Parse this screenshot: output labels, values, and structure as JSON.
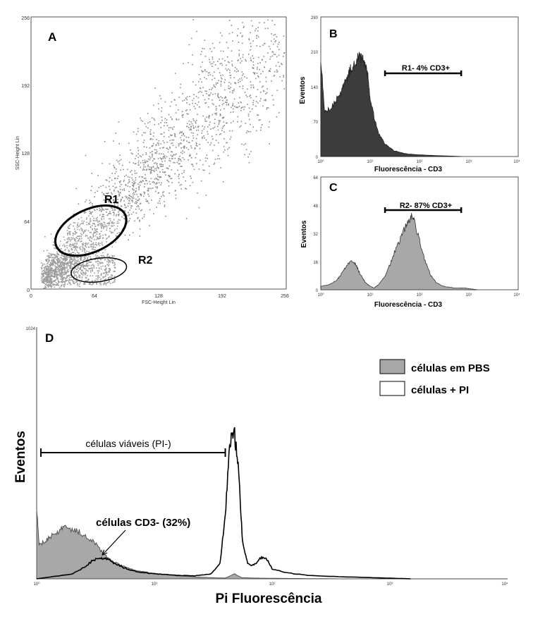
{
  "chart_data": [
    {
      "panel": "A",
      "type": "scatter",
      "xlabel": "FSC-Height Lin",
      "ylabel": "SSC-Height Lin",
      "xlim": [
        0,
        256
      ],
      "ylim": [
        0,
        256
      ],
      "x_ticks": [
        "0",
        "64",
        "128",
        "192",
        "256"
      ],
      "y_ticks": [
        "0",
        "64",
        "128",
        "192",
        "256"
      ],
      "grid": false,
      "point_color": "#8a8a8a",
      "gates": [
        {
          "label": "R1",
          "cx": 60,
          "cy": 55,
          "rx": 38,
          "ry": 20,
          "angle_deg": 25,
          "stroke": 3
        },
        {
          "label": "R2",
          "cx": 68,
          "cy": 18,
          "rx": 28,
          "ry": 11,
          "angle_deg": 8,
          "stroke": 1.5
        }
      ]
    },
    {
      "panel": "B",
      "type": "area",
      "xlabel": "Fluorescência - CD3",
      "ylabel": "Eventos",
      "xscale": "log",
      "xlim": [
        1,
        10000
      ],
      "ylim": [
        0,
        280
      ],
      "x_ticks": [
        "10⁰",
        "10¹",
        "10²",
        "10³",
        "10⁴"
      ],
      "y_ticks": [
        "0",
        "70",
        "140",
        "210",
        "280"
      ],
      "fill": "#3c3c3c",
      "x": [
        1,
        1.2,
        1.5,
        2,
        2.5,
        3,
        3.5,
        4,
        5,
        6,
        7,
        8,
        9,
        10,
        12,
        15,
        20,
        30,
        50,
        80,
        120,
        200,
        400,
        700
      ],
      "y": [
        200,
        90,
        95,
        110,
        128,
        145,
        160,
        175,
        190,
        200,
        197,
        185,
        160,
        120,
        80,
        45,
        25,
        12,
        6,
        4,
        3,
        2,
        1,
        0
      ],
      "marker": {
        "text": "R1- 4% CD3+",
        "x_range": [
          20,
          700
        ]
      }
    },
    {
      "panel": "C",
      "type": "area",
      "xlabel": "Fluorescência - CD3",
      "ylabel": "Eventos",
      "xscale": "log",
      "xlim": [
        1,
        10000
      ],
      "ylim": [
        0,
        64
      ],
      "x_ticks": [
        "10⁰",
        "10¹",
        "10²",
        "10³",
        "10⁴"
      ],
      "y_ticks": [
        "0",
        "16",
        "32",
        "48",
        "64"
      ],
      "fill": "#a8a8a8",
      "x": [
        1,
        1.5,
        2,
        2.5,
        3,
        4,
        5,
        6,
        7,
        8,
        10,
        12,
        15,
        20,
        25,
        30,
        40,
        50,
        60,
        70,
        80,
        100,
        130,
        170,
        220,
        300,
        500,
        800,
        1500
      ],
      "y": [
        2,
        3,
        5,
        8,
        12,
        16,
        15,
        10,
        7,
        4,
        2,
        1,
        3,
        8,
        14,
        20,
        28,
        35,
        39,
        42,
        38,
        28,
        16,
        8,
        4,
        2,
        1,
        1,
        0
      ],
      "marker": {
        "text": "R2- 87% CD3+",
        "x_range": [
          20,
          700
        ]
      }
    },
    {
      "panel": "D",
      "type": "area",
      "xlabel": "Pi Fluorescência",
      "ylabel": "Eventos",
      "xscale": "log",
      "xlim": [
        1,
        10000
      ],
      "ylim": [
        0,
        1024
      ],
      "x_ticks": [
        "10⁰",
        "10¹",
        "10²",
        "10³",
        "10⁴"
      ],
      "y_ticks": [
        "1024"
      ],
      "series": [
        {
          "name": "células em PBS",
          "fill": "#a8a8a8",
          "x": [
            1,
            1.05,
            1.15,
            1.3,
            1.5,
            1.7,
            2,
            2.3,
            2.7,
            3.2,
            3.8,
            4.5,
            5.5,
            7,
            9,
            12,
            16,
            22,
            30,
            40,
            48,
            55,
            70,
            100,
            200,
            400,
            800
          ],
          "y": [
            300,
            140,
            150,
            170,
            190,
            210,
            200,
            190,
            170,
            140,
            95,
            70,
            50,
            35,
            25,
            18,
            12,
            8,
            5,
            3,
            20,
            5,
            3,
            2,
            1,
            0,
            0
          ]
        },
        {
          "name": "células + PI",
          "fill": "#ffffff",
          "x": [
            1,
            2,
            2.5,
            3,
            3.5,
            4,
            4.5,
            5.5,
            7,
            9,
            12,
            16,
            22,
            30,
            36,
            40,
            44,
            48,
            52,
            56,
            62,
            70,
            80,
            90,
            100,
            130,
            200,
            400,
            800,
            1500
          ],
          "y": [
            0,
            20,
            45,
            75,
            85,
            80,
            65,
            45,
            30,
            22,
            18,
            14,
            12,
            20,
            60,
            260,
            560,
            590,
            440,
            150,
            60,
            55,
            85,
            80,
            40,
            25,
            14,
            8,
            4,
            0
          ]
        }
      ],
      "bracket": {
        "text": "células viáveis (PI-)",
        "x_range": [
          1,
          40
        ]
      },
      "annotation": {
        "text": "células CD3- (32%)",
        "arrow_to": [
          3.6,
          85
        ]
      },
      "legend_position": "top-right"
    }
  ],
  "panel_labels": {
    "a": "A",
    "b": "B",
    "c": "C",
    "d": "D"
  },
  "gate_labels": {
    "r1": "R1",
    "r2": "R2"
  },
  "texts": {
    "a_xlabel": "FSC-Height Lin",
    "a_ylabel": "SSC-Height Lin",
    "b_xlabel": "Fluorescência - CD3",
    "b_ylabel": "Eventos",
    "b_marker": "R1- 4% CD3+",
    "c_xlabel": "Fluorescência - CD3",
    "c_ylabel": "Eventos",
    "c_marker": "R2- 87% CD3+",
    "d_xlabel": "Pi Fluorescência",
    "d_ylabel": "Eventos",
    "d_bracket": "células viáveis (PI-)",
    "d_annotation": "células CD3- (32%)",
    "legend_pbs": "células em PBS",
    "legend_pi": "células + PI"
  },
  "ticks": {
    "a": [
      "0",
      "64",
      "128",
      "192",
      "256"
    ],
    "b_y": [
      "0",
      "70",
      "140",
      "210",
      "280"
    ],
    "c_y": [
      "0",
      "16",
      "32",
      "48",
      "64"
    ],
    "log": [
      "10⁰",
      "10¹",
      "10²",
      "10³",
      "10⁴"
    ],
    "d_ytop": "1024"
  }
}
